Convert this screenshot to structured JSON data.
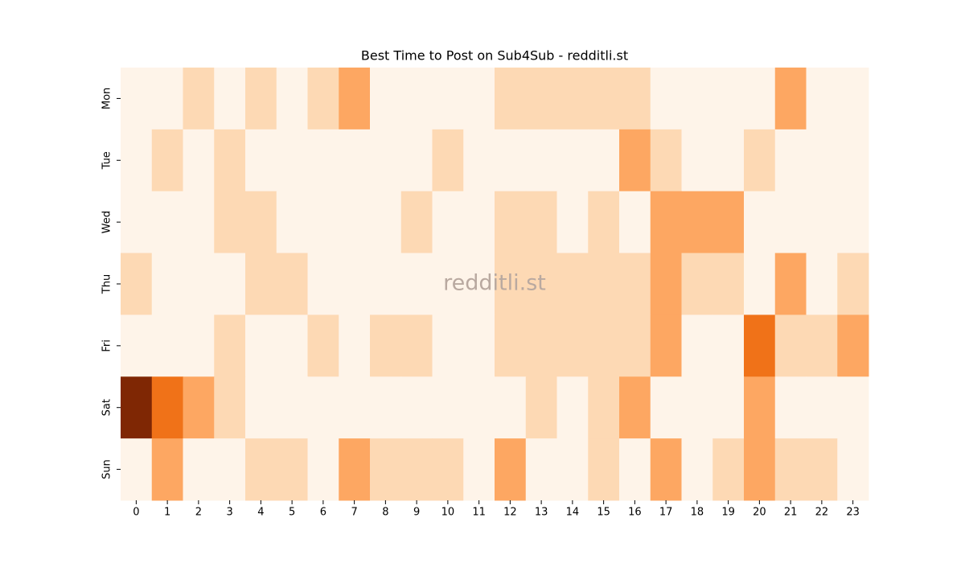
{
  "chart_data": {
    "type": "heatmap",
    "title": "Best Time to Post on Sub4Sub - redditli.st",
    "watermark": "redditli.st",
    "x": [
      0,
      1,
      2,
      3,
      4,
      5,
      6,
      7,
      8,
      9,
      10,
      11,
      12,
      13,
      14,
      15,
      16,
      17,
      18,
      19,
      20,
      21,
      22,
      23
    ],
    "y": [
      "Mon",
      "Tue",
      "Wed",
      "Thu",
      "Fri",
      "Sat",
      "Sun"
    ],
    "values": [
      [
        0,
        0,
        1,
        0,
        1,
        0,
        1,
        2,
        0,
        0,
        0,
        0,
        1,
        1,
        1,
        1,
        1,
        0,
        0,
        0,
        0,
        2,
        0,
        0
      ],
      [
        0,
        1,
        0,
        1,
        0,
        0,
        0,
        0,
        0,
        0,
        1,
        0,
        0,
        0,
        0,
        0,
        2,
        1,
        0,
        0,
        1,
        0,
        0,
        0
      ],
      [
        0,
        0,
        0,
        1,
        1,
        0,
        0,
        0,
        0,
        1,
        0,
        0,
        1,
        1,
        0,
        1,
        0,
        2,
        2,
        2,
        0,
        0,
        0,
        0
      ],
      [
        1,
        0,
        0,
        0,
        1,
        1,
        0,
        0,
        0,
        0,
        0,
        0,
        1,
        1,
        1,
        1,
        1,
        2,
        1,
        1,
        0,
        2,
        0,
        1
      ],
      [
        0,
        0,
        0,
        1,
        0,
        0,
        1,
        0,
        1,
        1,
        0,
        0,
        1,
        1,
        1,
        1,
        1,
        2,
        0,
        0,
        3,
        1,
        1,
        2
      ],
      [
        4,
        3,
        2,
        1,
        0,
        0,
        0,
        0,
        0,
        0,
        0,
        0,
        0,
        1,
        0,
        1,
        2,
        0,
        0,
        0,
        2,
        0,
        0,
        0
      ],
      [
        0,
        2,
        0,
        0,
        1,
        1,
        0,
        2,
        1,
        1,
        1,
        0,
        2,
        0,
        0,
        1,
        0,
        2,
        0,
        1,
        2,
        1,
        1,
        0
      ]
    ],
    "zlim": [
      0,
      4
    ],
    "colorscale": [
      "#fef4e9",
      "#fdd9b4",
      "#fda762",
      "#f07218",
      "#7f2704"
    ]
  }
}
